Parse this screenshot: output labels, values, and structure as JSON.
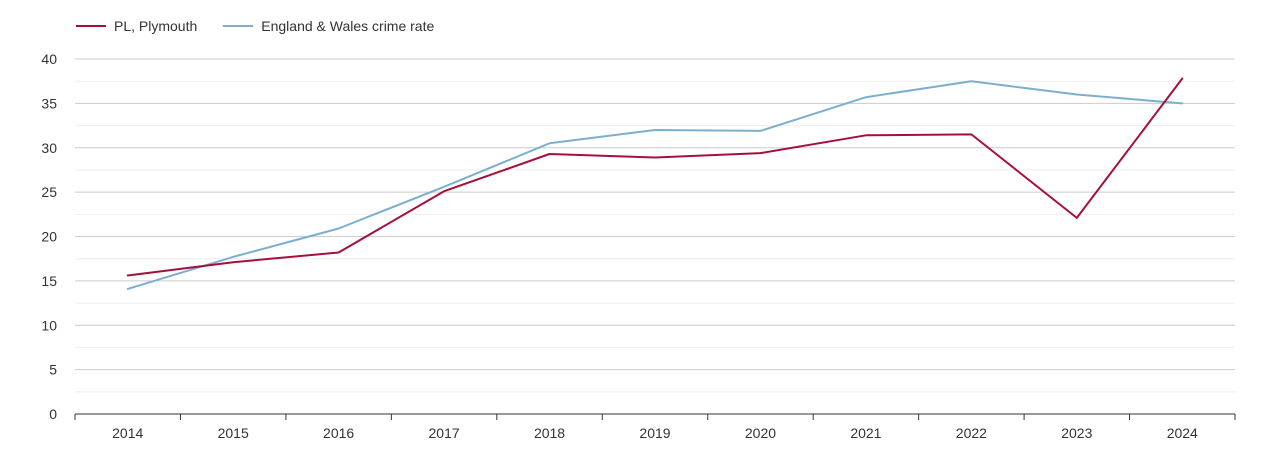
{
  "chart_data": {
    "type": "line",
    "title": "",
    "xlabel": "",
    "ylabel": "",
    "categories": [
      "2014",
      "2015",
      "2016",
      "2017",
      "2018",
      "2019",
      "2020",
      "2021",
      "2022",
      "2023",
      "2024"
    ],
    "series": [
      {
        "name": "PL, Plymouth",
        "color": "#a50f3a",
        "values": [
          15.6,
          17.1,
          18.2,
          25.1,
          29.3,
          28.9,
          29.4,
          31.4,
          31.5,
          22.1,
          37.8
        ]
      },
      {
        "name": "England & Wales crime rate",
        "color": "#7bafd0",
        "values": [
          14.1,
          17.7,
          20.9,
          25.6,
          30.5,
          32.0,
          31.9,
          35.7,
          37.5,
          36.0,
          35.0
        ]
      }
    ],
    "ylim": [
      0,
      40
    ],
    "yticks": [
      0,
      5,
      10,
      15,
      20,
      25,
      30,
      35,
      40
    ],
    "grid": true,
    "legend_position": "top-left"
  }
}
